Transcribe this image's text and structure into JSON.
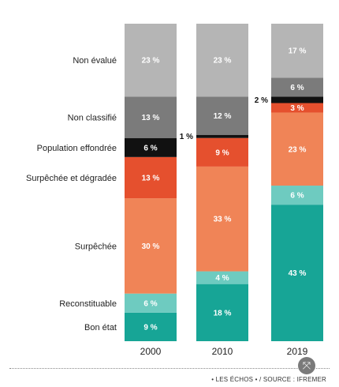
{
  "chart_data": {
    "type": "bar",
    "stacked": true,
    "categories": [
      "2000",
      "2010",
      "2019"
    ],
    "series": [
      {
        "name": "Bon état",
        "color": "#17a596",
        "values": [
          9,
          18,
          43
        ],
        "labels": [
          "9 %",
          "18 %",
          "43 %"
        ]
      },
      {
        "name": "Reconstituable",
        "color": "#6ecbc0",
        "values": [
          6,
          4,
          6
        ],
        "labels": [
          "6 %",
          "4 %",
          "6 %"
        ]
      },
      {
        "name": "Surpêchée",
        "color": "#f08457",
        "values": [
          30,
          33,
          23
        ],
        "labels": [
          "30 %",
          "33 %",
          "23 %"
        ]
      },
      {
        "name": "Surpêchée et dégradée",
        "color": "#e5502e",
        "values": [
          13,
          9,
          3
        ],
        "labels": [
          "13 %",
          "9 %",
          "3 %"
        ]
      },
      {
        "name": "Population effondrée",
        "color": "#111111",
        "values": [
          6,
          1,
          2
        ],
        "labels": [
          "6 %",
          "1 %",
          "2 %"
        ]
      },
      {
        "name": "Non classifié",
        "color": "#7b7b7b",
        "values": [
          13,
          12,
          6
        ],
        "labels": [
          "13 %",
          "12 %",
          "6 %"
        ]
      },
      {
        "name": "Non évalué",
        "color": "#b5b5b5",
        "values": [
          23,
          23,
          17
        ],
        "labels": [
          "23 %",
          "23 %",
          "17 %"
        ]
      }
    ],
    "ylim": [
      0,
      100
    ],
    "legend_placement": "left"
  },
  "footer": {
    "source": "• LES ÉCHOS • / SOURCE : IFREMER"
  },
  "controls": {
    "expand_icon": "⤧"
  }
}
